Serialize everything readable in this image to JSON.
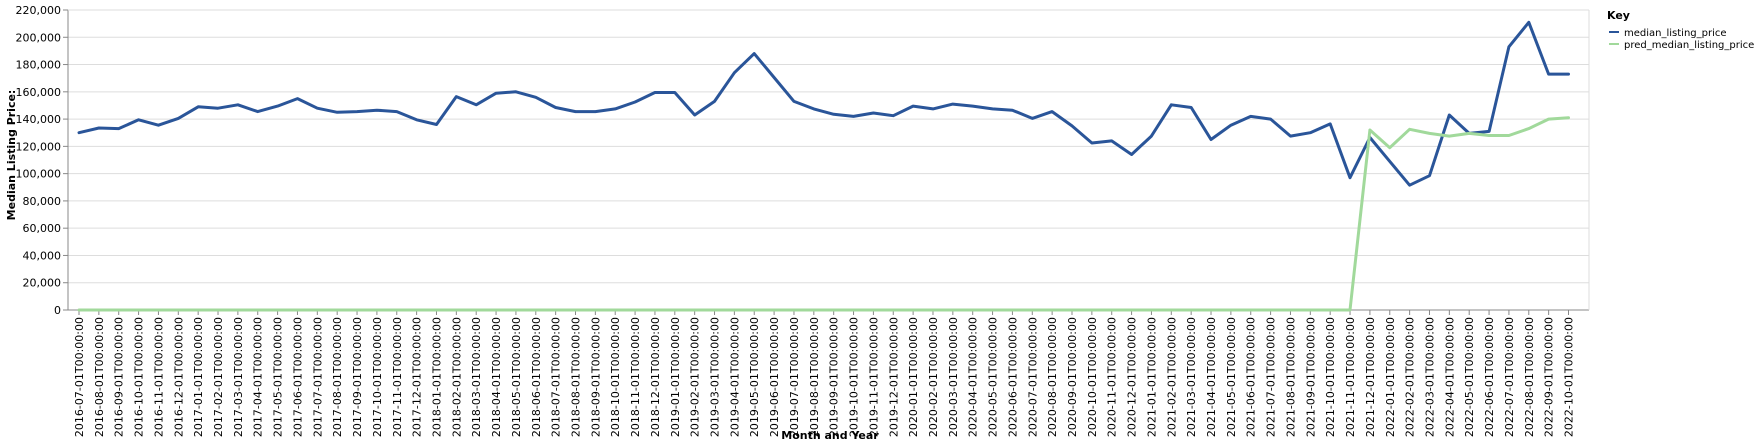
{
  "chart_data": {
    "type": "line",
    "xlabel": "Month and Year",
    "ylabel": "Median Listing Price:",
    "ylim": [
      0,
      220000
    ],
    "yticks": [
      "0",
      "20,000",
      "40,000",
      "60,000",
      "80,000",
      "100,000",
      "120,000",
      "140,000",
      "160,000",
      "180,000",
      "200,000",
      "220,000"
    ],
    "ytick_values": [
      0,
      20000,
      40000,
      60000,
      80000,
      100000,
      120000,
      140000,
      160000,
      180000,
      200000,
      220000
    ],
    "grid": true,
    "legend": {
      "title": "Key",
      "placement": "right"
    },
    "x": [
      "2016-07-01T00:00:00",
      "2016-08-01T00:00:00",
      "2016-09-01T00:00:00",
      "2016-10-01T00:00:00",
      "2016-11-01T00:00:00",
      "2016-12-01T00:00:00",
      "2017-01-01T00:00:00",
      "2017-02-01T00:00:00",
      "2017-03-01T00:00:00",
      "2017-04-01T00:00:00",
      "2017-05-01T00:00:00",
      "2017-06-01T00:00:00",
      "2017-07-01T00:00:00",
      "2017-08-01T00:00:00",
      "2017-09-01T00:00:00",
      "2017-10-01T00:00:00",
      "2017-11-01T00:00:00",
      "2017-12-01T00:00:00",
      "2018-01-01T00:00:00",
      "2018-02-01T00:00:00",
      "2018-03-01T00:00:00",
      "2018-04-01T00:00:00",
      "2018-05-01T00:00:00",
      "2018-06-01T00:00:00",
      "2018-07-01T00:00:00",
      "2018-08-01T00:00:00",
      "2018-09-01T00:00:00",
      "2018-10-01T00:00:00",
      "2018-11-01T00:00:00",
      "2018-12-01T00:00:00",
      "2019-01-01T00:00:00",
      "2019-02-01T00:00:00",
      "2019-03-01T00:00:00",
      "2019-04-01T00:00:00",
      "2019-05-01T00:00:00",
      "2019-06-01T00:00:00",
      "2019-07-01T00:00:00",
      "2019-08-01T00:00:00",
      "2019-09-01T00:00:00",
      "2019-10-01T00:00:00",
      "2019-11-01T00:00:00",
      "2019-12-01T00:00:00",
      "2020-01-01T00:00:00",
      "2020-02-01T00:00:00",
      "2020-03-01T00:00:00",
      "2020-04-01T00:00:00",
      "2020-05-01T00:00:00",
      "2020-06-01T00:00:00",
      "2020-07-01T00:00:00",
      "2020-08-01T00:00:00",
      "2020-09-01T00:00:00",
      "2020-10-01T00:00:00",
      "2020-11-01T00:00:00",
      "2020-12-01T00:00:00",
      "2021-01-01T00:00:00",
      "2021-02-01T00:00:00",
      "2021-03-01T00:00:00",
      "2021-04-01T00:00:00",
      "2021-05-01T00:00:00",
      "2021-06-01T00:00:00",
      "2021-07-01T00:00:00",
      "2021-08-01T00:00:00",
      "2021-09-01T00:00:00",
      "2021-10-01T00:00:00",
      "2021-11-01T00:00:00",
      "2021-12-01T00:00:00",
      "2022-01-01T00:00:00",
      "2022-02-01T00:00:00",
      "2022-03-01T00:00:00",
      "2022-04-01T00:00:00",
      "2022-05-01T00:00:00",
      "2022-06-01T00:00:00",
      "2022-07-01T00:00:00",
      "2022-08-01T00:00:00",
      "2022-09-01T00:00:00",
      "2022-10-01T00:00:00"
    ],
    "series": [
      {
        "name": "median_listing_price",
        "color": "#2a5599",
        "values": [
          130000,
          133500,
          133000,
          139500,
          135500,
          140500,
          149000,
          148000,
          150500,
          145500,
          149500,
          155000,
          148000,
          145000,
          145500,
          146500,
          145500,
          139500,
          136000,
          156500,
          150500,
          159000,
          160000,
          156000,
          148500,
          145500,
          145500,
          147500,
          152500,
          159500,
          159500,
          143000,
          153000,
          174000,
          188000,
          170500,
          153000,
          147500,
          143500,
          142000,
          144500,
          142500,
          149500,
          147500,
          151000,
          149500,
          147500,
          146500,
          140500,
          145500,
          135000,
          122500,
          124000,
          114000,
          127500,
          150500,
          148500,
          125000,
          135500,
          142000,
          140000,
          127500,
          130000,
          136500,
          97000,
          126500,
          109000,
          91500,
          98500,
          143000,
          129500,
          131000,
          193000,
          211000,
          173000,
          173000
        ]
      },
      {
        "name": "pred_median_listing_price",
        "color": "#a1d99b",
        "values": [
          0,
          0,
          0,
          0,
          0,
          0,
          0,
          0,
          0,
          0,
          0,
          0,
          0,
          0,
          0,
          0,
          0,
          0,
          0,
          0,
          0,
          0,
          0,
          0,
          0,
          0,
          0,
          0,
          0,
          0,
          0,
          0,
          0,
          0,
          0,
          0,
          0,
          0,
          0,
          0,
          0,
          0,
          0,
          0,
          0,
          0,
          0,
          0,
          0,
          0,
          0,
          0,
          0,
          0,
          0,
          0,
          0,
          0,
          0,
          0,
          0,
          0,
          0,
          0,
          0,
          132000,
          119000,
          132500,
          129500,
          127500,
          129500,
          128000,
          128000,
          133000,
          140000,
          141000
        ]
      }
    ]
  }
}
